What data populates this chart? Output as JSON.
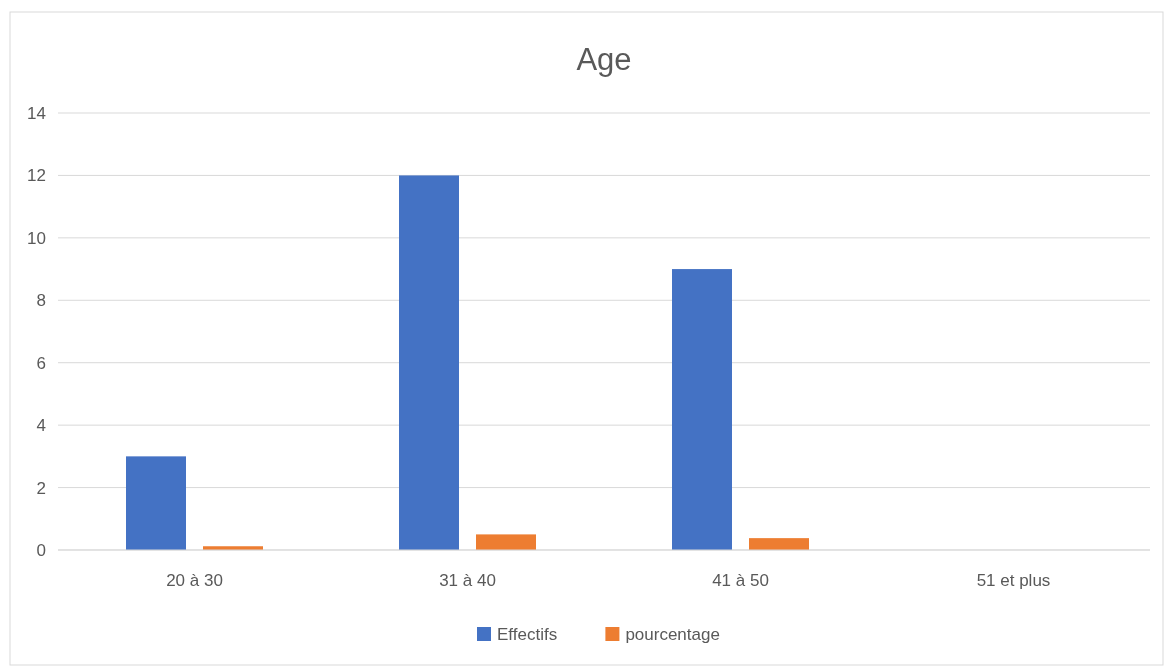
{
  "chart_data": {
    "type": "bar",
    "title": "Age",
    "categories": [
      "20 à 30",
      "31 à 40",
      "41 à 50",
      "51 et plus"
    ],
    "series": [
      {
        "name": "Effectifs",
        "color": "#4472c4",
        "values": [
          3,
          12,
          9,
          0
        ]
      },
      {
        "name": "pourcentage",
        "color": "#ed7d31",
        "values": [
          0.12,
          0.5,
          0.38,
          0
        ]
      }
    ],
    "ylim": [
      0,
      14
    ],
    "yticks": [
      0,
      2,
      4,
      6,
      8,
      10,
      12,
      14
    ],
    "grid": "y",
    "legend": "bottom"
  }
}
